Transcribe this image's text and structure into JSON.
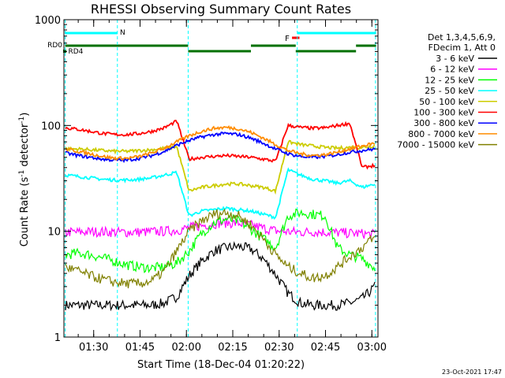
{
  "chart_data": {
    "type": "line",
    "title": "RHESSI Observing Summary Count Rates",
    "xlabel": "Start Time (18-Dec-04 01:20:22)",
    "ylabel_prefix": "Count Rate (s",
    "ylabel_sup1": "-1",
    "ylabel_mid": " detector",
    "ylabel_sup2": "-1",
    "ylabel_suffix": ")",
    "y_scale": "log",
    "ylim": [
      1,
      1000
    ],
    "xlim_minutes": [
      0,
      101.6
    ],
    "x_ticks": [
      {
        "label": "01:30",
        "min": 9.63
      },
      {
        "label": "01:45",
        "min": 24.63
      },
      {
        "label": "02:00",
        "min": 39.63
      },
      {
        "label": "02:15",
        "min": 54.63
      },
      {
        "label": "02:30",
        "min": 69.63
      },
      {
        "label": "02:45",
        "min": 84.63
      },
      {
        "label": "03:00",
        "min": 99.63
      }
    ],
    "y_ticks": [
      {
        "label": "1",
        "value": 1
      },
      {
        "label": "10",
        "value": 10
      },
      {
        "label": "100",
        "value": 100
      },
      {
        "label": "1000",
        "value": 1000
      }
    ],
    "legend_header": [
      "Det 1,3,4,5,6,9,",
      "FDecim 1, Att 0"
    ],
    "series": [
      {
        "name": "3 - 6 keV",
        "color": "#000000",
        "values": [
          2.0,
          2.0,
          2.0,
          2.0,
          2.0,
          2.0,
          2.0,
          2.0,
          2.1,
          2.4,
          3.8,
          5.2,
          6.5,
          7.0,
          7.2,
          6.8,
          5.5,
          3.9,
          2.6,
          2.1,
          2.0,
          2.0,
          2.0,
          2.1,
          2.3,
          2.6,
          3.0
        ]
      },
      {
        "name": "6 - 12 keV",
        "color": "#ff00ff",
        "values": [
          9.8,
          9.8,
          9.9,
          9.9,
          9.8,
          9.8,
          9.8,
          9.9,
          10.0,
          10.2,
          10.8,
          11.3,
          11.8,
          12.0,
          11.9,
          11.4,
          10.7,
          10.1,
          9.9,
          9.8,
          9.9,
          9.8,
          9.7,
          9.6,
          9.5,
          9.4,
          9.3
        ]
      },
      {
        "name": "12 - 25 keV",
        "color": "#00ff00",
        "values": [
          6.0,
          6.2,
          6.0,
          5.6,
          5.2,
          4.8,
          4.6,
          4.5,
          4.6,
          5.0,
          6.5,
          9.5,
          12.0,
          13.0,
          12.5,
          10.5,
          8.5,
          7.0,
          14.0,
          15.0,
          14.5,
          14.0,
          7.0,
          6.0,
          5.5,
          5.0,
          4.5
        ]
      },
      {
        "name": "25 - 50 keV",
        "color": "#00ffff",
        "values": [
          34.0,
          33.0,
          32.0,
          31.0,
          30.5,
          30.5,
          31.0,
          32.0,
          34.0,
          36.0,
          14.0,
          15.5,
          16.0,
          16.5,
          16.0,
          15.5,
          14.5,
          13.5,
          38.0,
          34.0,
          31.0,
          30.0,
          28.5,
          30.0,
          26.0,
          27.0,
          28.0
        ]
      },
      {
        "name": "50 - 100 keV",
        "color": "#cccc00",
        "values": [
          60.0,
          60.0,
          59.0,
          58.0,
          57.0,
          57.0,
          58.0,
          59.0,
          61.0,
          63.0,
          24.0,
          26.0,
          27.0,
          28.0,
          28.0,
          27.0,
          26.0,
          24.0,
          70.0,
          66.0,
          64.0,
          62.0,
          61.0,
          62.0,
          62.0,
          63.0,
          64.0
        ]
      },
      {
        "name": "100 - 300 keV",
        "color": "#ff0000",
        "values": [
          95.0,
          92.0,
          88.0,
          84.0,
          82.0,
          82.0,
          84.0,
          88.0,
          95.0,
          110.0,
          48.0,
          50.0,
          51.0,
          52.0,
          51.0,
          50.0,
          48.0,
          46.0,
          100.0,
          96.0,
          94.0,
          95.0,
          100.0,
          105.0,
          40.0,
          41.0,
          42.0
        ]
      },
      {
        "name": "300 - 800 keV",
        "color": "#0000ff",
        "values": [
          55.0,
          52.0,
          50.0,
          48.0,
          47.0,
          47.0,
          49.0,
          52.0,
          57.0,
          65.0,
          72.0,
          78.0,
          82.0,
          84.0,
          82.0,
          76.0,
          68.0,
          60.0,
          54.0,
          51.0,
          50.0,
          51.0,
          53.0,
          56.0,
          58.0,
          59.0,
          60.0
        ]
      },
      {
        "name": "800 - 7000 keV",
        "color": "#ff8c00",
        "values": [
          60.0,
          57.0,
          54.0,
          51.0,
          49.0,
          49.0,
          51.0,
          55.0,
          61.0,
          70.0,
          80.0,
          88.0,
          94.0,
          96.0,
          93.0,
          86.0,
          76.0,
          66.0,
          58.0,
          54.0,
          52.0,
          53.0,
          56.0,
          60.0,
          64.0,
          66.0,
          68.0
        ]
      },
      {
        "name": "7000 - 15000 keV",
        "color": "#808000",
        "values": [
          4.6,
          4.2,
          3.8,
          3.5,
          3.3,
          3.2,
          3.2,
          3.4,
          4.2,
          6.5,
          10.0,
          12.5,
          14.5,
          15.0,
          14.0,
          11.5,
          8.5,
          6.0,
          4.6,
          4.0,
          3.6,
          3.8,
          4.6,
          5.8,
          7.0,
          8.0,
          8.5
        ]
      }
    ],
    "series_x_minutes": [
      0.5,
      4.5,
      8.5,
      12.5,
      16.5,
      20.5,
      24.5,
      28.5,
      32.5,
      36.5,
      40.5,
      44.5,
      48.5,
      52.5,
      56.5,
      60.5,
      64.5,
      68.5,
      72.5,
      76.5,
      80.5,
      84.5,
      88.5,
      92.5,
      96.5,
      98.5,
      100.5
    ],
    "annotations": {
      "rd0": {
        "label": "RD0"
      },
      "rd4": {
        "label": "RD4"
      },
      "night": {
        "label": "N"
      },
      "flare": {
        "label": "F"
      }
    },
    "vertical_lines_minutes": [
      0.4,
      17.3,
      40.2,
      75.5,
      100.8
    ],
    "timestamp": "23-Oct-2021 17:47"
  }
}
